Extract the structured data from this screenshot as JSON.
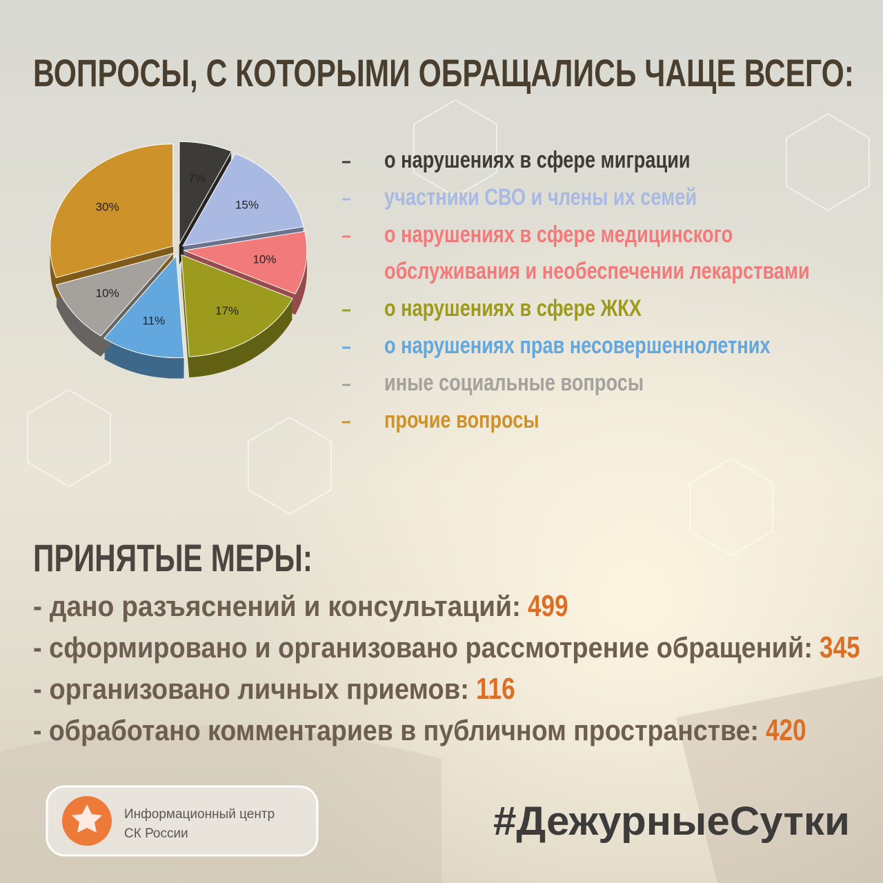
{
  "header": {
    "title": "ВОПРОСЫ, С КОТОРЫМИ ОБРАЩАЛИСЬ ЧАЩЕ ВСЕГО:"
  },
  "chart_data": {
    "type": "pie",
    "categories": [
      "о нарушениях в сфере миграции",
      "участники СВО и члены их семей",
      "о нарушениях в сфере медицинского обслуживания и необеспечении лекарствами",
      "о нарушениях в сфере ЖКХ",
      "о нарушениях прав несовершеннолетних",
      "иные социальные вопросы",
      "прочие вопросы"
    ],
    "values": [
      7,
      15,
      10,
      17,
      11,
      10,
      30
    ],
    "value_labels": [
      "7%",
      "15%",
      "10%",
      "17%",
      "11%",
      "10%",
      "30%"
    ],
    "colors": [
      "#3d3b37",
      "#a9b9e2",
      "#f27a7a",
      "#9c9b1e",
      "#62a8de",
      "#a5a19d",
      "#cd9229"
    ]
  },
  "measures": {
    "title": "ПРИНЯТЫЕ МЕРЫ:",
    "items": [
      {
        "label": "- дано разъяснений и консультаций:",
        "value": 499
      },
      {
        "label": "- сформировано и организовано рассмотрение обращений:",
        "value": 345
      },
      {
        "label": "- организовано личных приемов:",
        "value": 116
      },
      {
        "label": "- обработано комментариев в публичном пространстве:",
        "value": 420
      }
    ]
  },
  "footer": {
    "org_line1": "Информационный центр",
    "org_line2": "СК России",
    "hashtag": "#ДежурныеСутки"
  }
}
